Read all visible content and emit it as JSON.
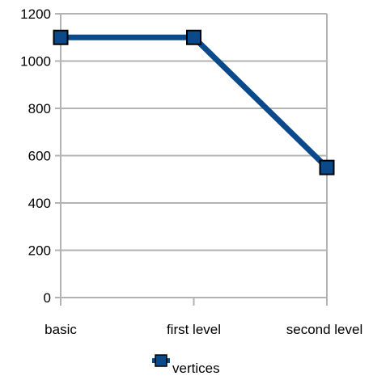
{
  "chart_data": {
    "type": "line",
    "categories": [
      "basic",
      "first level",
      "second level"
    ],
    "series": [
      {
        "name": "vertices",
        "values": [
          1100,
          1100,
          550
        ],
        "color": "#0a4a8a",
        "marker_fill": "#0a4a8a",
        "marker": "square"
      }
    ],
    "ylim": [
      0,
      1200
    ],
    "yticks": [
      0,
      200,
      400,
      600,
      800,
      1000,
      1200
    ],
    "ytick_labels": [
      "0",
      "200",
      "400",
      "600",
      "800",
      "1000",
      "1200"
    ],
    "title": "",
    "xlabel": "",
    "ylabel": "",
    "grid": true,
    "legend": "bottom"
  }
}
